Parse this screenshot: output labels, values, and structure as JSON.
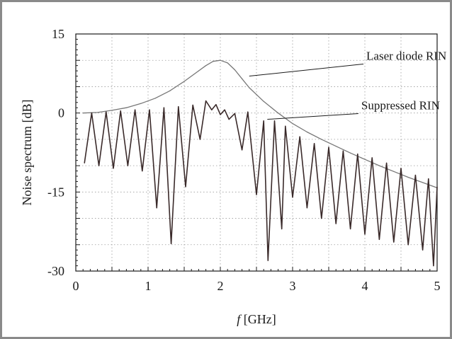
{
  "chart_data": {
    "type": "line",
    "title": "",
    "xlabel_italic": "f",
    "xlabel_rest": " [GHz]",
    "ylabel": "Noise spectrum [dB]",
    "xlim": [
      0,
      5
    ],
    "ylim": [
      -30,
      15
    ],
    "grid": true,
    "legend": "none",
    "x_ticks": [
      0,
      1,
      2,
      3,
      4,
      5
    ],
    "x_tick_labels": [
      "0",
      "1",
      "2",
      "3",
      "4",
      "5"
    ],
    "y_ticks": [
      -30,
      -15,
      0,
      15
    ],
    "y_tick_labels": [
      "-30",
      "-15",
      "0",
      "15"
    ],
    "series": [
      {
        "name": "Laser diode RIN",
        "color": "#777777",
        "x": [
          0.1,
          0.3,
          0.5,
          0.7,
          0.9,
          1.1,
          1.3,
          1.5,
          1.7,
          1.8,
          1.9,
          2.0,
          2.1,
          2.2,
          2.3,
          2.4,
          2.6,
          2.8,
          3.0,
          3.2,
          3.4,
          3.6,
          3.8,
          4.0,
          4.2,
          4.4,
          4.6,
          4.8,
          5.0
        ],
        "values": [
          0.0,
          0.1,
          0.5,
          1.0,
          1.8,
          2.8,
          4.2,
          6.0,
          8.0,
          9.0,
          9.8,
          10.0,
          9.5,
          8.2,
          6.5,
          4.8,
          2.2,
          0.0,
          -2.0,
          -3.6,
          -5.0,
          -6.3,
          -7.6,
          -8.8,
          -10.0,
          -11.1,
          -12.2,
          -13.2,
          -14.2
        ]
      },
      {
        "name": "Suppressed RIN",
        "color": "#3a2a2a",
        "x": [
          0.12,
          0.22,
          0.32,
          0.42,
          0.52,
          0.62,
          0.72,
          0.82,
          0.92,
          1.02,
          1.12,
          1.22,
          1.32,
          1.42,
          1.52,
          1.62,
          1.72,
          1.8,
          1.88,
          1.94,
          2.0,
          2.06,
          2.12,
          2.2,
          2.3,
          2.38,
          2.5,
          2.6,
          2.66,
          2.75,
          2.85,
          2.9,
          3.0,
          3.1,
          3.2,
          3.3,
          3.4,
          3.5,
          3.6,
          3.7,
          3.8,
          3.9,
          4.0,
          4.1,
          4.2,
          4.3,
          4.4,
          4.5,
          4.6,
          4.7,
          4.8,
          4.88,
          4.95,
          5.0
        ],
        "values": [
          -9.5,
          0.0,
          -10.0,
          0.2,
          -10.5,
          0.4,
          -10.0,
          0.6,
          -11.0,
          0.6,
          -18.0,
          1.0,
          -24.8,
          1.2,
          -14.0,
          1.5,
          -5.0,
          2.3,
          0.6,
          1.6,
          -0.3,
          0.6,
          -1.2,
          -0.1,
          -7.0,
          0.2,
          -15.5,
          -1.5,
          -28.0,
          -1.5,
          -22.0,
          -2.5,
          -16.0,
          -4.5,
          -18.0,
          -5.8,
          -20.0,
          -6.5,
          -21.0,
          -7.2,
          -22.0,
          -7.8,
          -23.0,
          -8.5,
          -24.0,
          -9.5,
          -24.5,
          -10.5,
          -25.0,
          -11.8,
          -26.0,
          -12.5,
          -29.0,
          -14.0
        ]
      }
    ],
    "annotations": [
      {
        "text": "Laser diode RIN",
        "arrow_from": [
          4.02,
          10.1
        ],
        "arrow_to": [
          2.4,
          7.0
        ]
      },
      {
        "text": "Suppressed RIN",
        "arrow_from": [
          3.95,
          0.7
        ],
        "arrow_to": [
          2.65,
          -1.2
        ]
      }
    ]
  }
}
